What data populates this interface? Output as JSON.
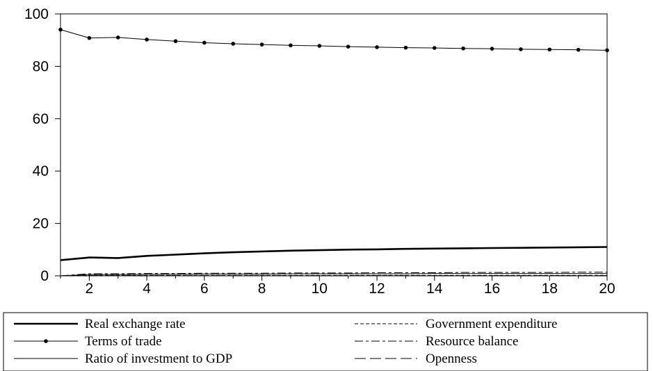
{
  "chart_data": {
    "type": "line",
    "x": [
      1,
      2,
      3,
      4,
      5,
      6,
      7,
      8,
      9,
      10,
      11,
      12,
      13,
      14,
      15,
      16,
      17,
      18,
      19,
      20
    ],
    "xticks": [
      2,
      4,
      6,
      8,
      10,
      12,
      14,
      16,
      18,
      20
    ],
    "yticks": [
      0,
      20,
      40,
      60,
      80,
      100
    ],
    "xlim": [
      1,
      20
    ],
    "ylim": [
      0,
      100
    ],
    "grid": false,
    "legend_position": "bottom",
    "series": [
      {
        "name": "Real exchange rate",
        "style": "solid-thick",
        "values": [
          6.0,
          7.0,
          6.8,
          7.6,
          8.1,
          8.6,
          9.0,
          9.3,
          9.6,
          9.8,
          10.0,
          10.1,
          10.3,
          10.4,
          10.5,
          10.6,
          10.7,
          10.8,
          10.9,
          11.0
        ]
      },
      {
        "name": "Terms of trade",
        "style": "solid-markers",
        "values": [
          94.0,
          90.8,
          91.0,
          90.2,
          89.6,
          89.0,
          88.6,
          88.3,
          88.0,
          87.8,
          87.5,
          87.3,
          87.1,
          87.0,
          86.8,
          86.7,
          86.5,
          86.4,
          86.3,
          86.1
        ]
      },
      {
        "name": "Ratio of investment to GDP",
        "style": "solid-thin",
        "values": [
          0.0,
          0.5,
          0.5,
          0.6,
          0.6,
          0.7,
          0.7,
          0.7,
          0.8,
          0.8,
          0.8,
          0.8,
          0.8,
          0.9,
          0.9,
          0.9,
          0.9,
          0.9,
          0.9,
          0.9
        ]
      },
      {
        "name": "Government expenditure",
        "style": "dashed",
        "values": [
          0.0,
          0.2,
          0.2,
          0.2,
          0.2,
          0.2,
          0.2,
          0.2,
          0.2,
          0.2,
          0.2,
          0.2,
          0.2,
          0.2,
          0.2,
          0.2,
          0.2,
          0.2,
          0.2,
          0.2
        ]
      },
      {
        "name": "Resource balance",
        "style": "dash-dot",
        "values": [
          0.0,
          0.8,
          0.8,
          0.9,
          0.9,
          1.0,
          1.0,
          1.0,
          1.1,
          1.1,
          1.1,
          1.2,
          1.2,
          1.2,
          1.3,
          1.3,
          1.3,
          1.3,
          1.4,
          1.4
        ]
      },
      {
        "name": "Openness",
        "style": "long-dash",
        "values": [
          0.0,
          0.1,
          0.1,
          0.1,
          0.1,
          0.1,
          0.1,
          0.1,
          0.1,
          0.1,
          0.1,
          0.1,
          0.1,
          0.1,
          0.1,
          0.1,
          0.1,
          0.1,
          0.1,
          0.1
        ]
      }
    ]
  }
}
